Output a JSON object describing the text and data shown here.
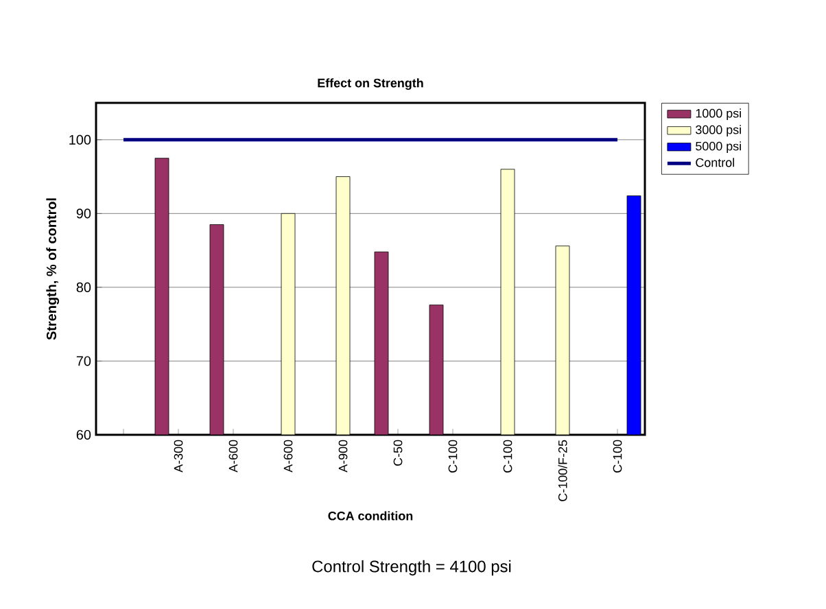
{
  "chart_data": {
    "type": "bar",
    "title": "Effect on Strength",
    "xlabel": "CCA condition",
    "ylabel": "Strength, % of control",
    "categories": [
      null,
      "A-300",
      "A-600",
      "A-600",
      "A-900",
      "C-50",
      "C-100",
      "C-100",
      "C-100/F-25",
      "C-100"
    ],
    "series": [
      {
        "name": "1000 psi",
        "color": "#993366",
        "values": [
          null,
          97.5,
          88.5,
          null,
          null,
          84.8,
          77.6,
          null,
          null,
          null
        ]
      },
      {
        "name": "3000 psi",
        "color": "#ffffcc",
        "values": [
          null,
          null,
          null,
          90,
          95,
          null,
          null,
          96,
          85.6,
          null
        ]
      },
      {
        "name": "5000 psi",
        "color": "#0000ff",
        "values": [
          null,
          null,
          null,
          null,
          null,
          null,
          null,
          null,
          null,
          92.4
        ]
      },
      {
        "name": "Control",
        "type": "line",
        "color": "#000080",
        "values": [
          100,
          100,
          100,
          100,
          100,
          100,
          100,
          100,
          100,
          100
        ]
      }
    ],
    "ylim": [
      60,
      105
    ],
    "yticks": [
      60,
      70,
      80,
      90,
      100
    ],
    "grid": "y",
    "legend": "right",
    "annotations": [
      "Control Strength = 4100 psi"
    ]
  }
}
